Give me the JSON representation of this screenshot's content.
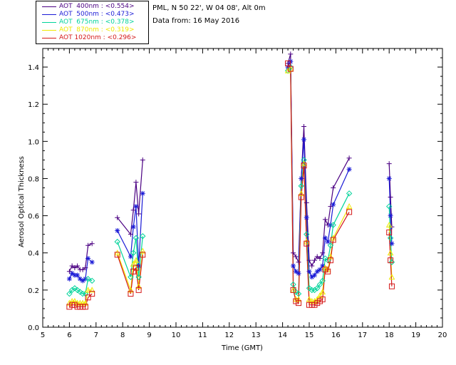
{
  "header": {
    "station": "PML, N 50 22', W 04 08', Alt 0m",
    "date_line": "Data from: 16 May 2016"
  },
  "chart_data": {
    "type": "line",
    "title": "",
    "xlabel": "Time (GMT)",
    "ylabel": "Aerosol Optical Thickness",
    "xlim": [
      5,
      20
    ],
    "ylim": [
      0,
      1.5
    ],
    "xticks": [
      "5",
      "6",
      "7",
      "8",
      "9",
      "10",
      "11",
      "12",
      "13",
      "14",
      "15",
      "16",
      "17",
      "18",
      "19",
      "20"
    ],
    "yticks": [
      "0.0",
      "0.2",
      "0.4",
      "0.6",
      "0.8",
      "1.0",
      "1.2",
      "1.4"
    ],
    "legend_position": "top-left",
    "series": [
      {
        "name": "AOT 400nm",
        "label": "AOT  400nm : <0.554>",
        "color": "#4b0082",
        "marker": "plus",
        "points": [
          [
            6.0,
            0.3
          ],
          [
            6.1,
            0.33
          ],
          [
            6.2,
            0.32
          ],
          [
            6.3,
            0.33
          ],
          [
            6.4,
            0.31
          ],
          [
            6.5,
            0.31
          ],
          [
            6.6,
            0.32
          ],
          [
            6.7,
            0.44
          ],
          [
            6.85,
            0.45
          ],
          [
            7.8,
            0.59
          ],
          [
            8.3,
            0.5
          ],
          [
            8.4,
            0.63
          ],
          [
            8.5,
            0.78
          ],
          [
            8.6,
            0.61
          ],
          [
            8.75,
            0.9
          ],
          [
            14.2,
            1.42
          ],
          [
            14.3,
            1.47
          ],
          [
            14.4,
            0.4
          ],
          [
            14.5,
            0.38
          ],
          [
            14.6,
            0.35
          ],
          [
            14.7,
            0.8
          ],
          [
            14.8,
            1.08
          ],
          [
            14.9,
            0.67
          ],
          [
            15.0,
            0.36
          ],
          [
            15.1,
            0.33
          ],
          [
            15.2,
            0.36
          ],
          [
            15.3,
            0.38
          ],
          [
            15.4,
            0.37
          ],
          [
            15.5,
            0.4
          ],
          [
            15.6,
            0.58
          ],
          [
            15.7,
            0.55
          ],
          [
            15.8,
            0.65
          ],
          [
            15.9,
            0.75
          ],
          [
            16.5,
            0.91
          ],
          [
            18.0,
            0.88
          ],
          [
            18.05,
            0.7
          ],
          [
            18.1,
            0.54
          ]
        ]
      },
      {
        "name": "AOT 500nm",
        "label": "AOT  500nm : <0.473>",
        "color": "#1a1ad6",
        "marker": "asterisk",
        "points": [
          [
            6.0,
            0.26
          ],
          [
            6.1,
            0.29
          ],
          [
            6.2,
            0.28
          ],
          [
            6.3,
            0.28
          ],
          [
            6.4,
            0.26
          ],
          [
            6.5,
            0.25
          ],
          [
            6.6,
            0.26
          ],
          [
            6.7,
            0.37
          ],
          [
            6.85,
            0.35
          ],
          [
            7.8,
            0.52
          ],
          [
            8.3,
            0.38
          ],
          [
            8.4,
            0.54
          ],
          [
            8.5,
            0.65
          ],
          [
            8.6,
            0.33
          ],
          [
            8.75,
            0.72
          ],
          [
            14.2,
            1.4
          ],
          [
            14.3,
            1.43
          ],
          [
            14.4,
            0.33
          ],
          [
            14.5,
            0.3
          ],
          [
            14.6,
            0.29
          ],
          [
            14.7,
            0.8
          ],
          [
            14.8,
            1.01
          ],
          [
            14.9,
            0.59
          ],
          [
            15.0,
            0.3
          ],
          [
            15.1,
            0.27
          ],
          [
            15.2,
            0.28
          ],
          [
            15.3,
            0.3
          ],
          [
            15.4,
            0.31
          ],
          [
            15.5,
            0.33
          ],
          [
            15.6,
            0.48
          ],
          [
            15.7,
            0.46
          ],
          [
            15.8,
            0.55
          ],
          [
            15.9,
            0.66
          ],
          [
            16.5,
            0.85
          ],
          [
            18.0,
            0.8
          ],
          [
            18.05,
            0.6
          ],
          [
            18.1,
            0.45
          ]
        ]
      },
      {
        "name": "AOT 675nm",
        "label": "AOT  675nm : <0.378>",
        "color": "#00d39a",
        "marker": "diamond",
        "points": [
          [
            6.0,
            0.18
          ],
          [
            6.1,
            0.2
          ],
          [
            6.2,
            0.21
          ],
          [
            6.3,
            0.2
          ],
          [
            6.4,
            0.19
          ],
          [
            6.5,
            0.18
          ],
          [
            6.6,
            0.18
          ],
          [
            6.7,
            0.26
          ],
          [
            6.85,
            0.25
          ],
          [
            7.8,
            0.46
          ],
          [
            8.3,
            0.27
          ],
          [
            8.4,
            0.4
          ],
          [
            8.5,
            0.48
          ],
          [
            8.6,
            0.27
          ],
          [
            8.75,
            0.49
          ],
          [
            14.2,
            1.38
          ],
          [
            14.3,
            1.4
          ],
          [
            14.4,
            0.23
          ],
          [
            14.5,
            0.19
          ],
          [
            14.6,
            0.18
          ],
          [
            14.7,
            0.76
          ],
          [
            14.8,
            0.9
          ],
          [
            14.9,
            0.5
          ],
          [
            15.0,
            0.21
          ],
          [
            15.1,
            0.2
          ],
          [
            15.2,
            0.2
          ],
          [
            15.3,
            0.21
          ],
          [
            15.4,
            0.23
          ],
          [
            15.5,
            0.25
          ],
          [
            15.6,
            0.37
          ],
          [
            15.7,
            0.36
          ],
          [
            15.8,
            0.44
          ],
          [
            15.9,
            0.55
          ],
          [
            16.5,
            0.72
          ],
          [
            18.0,
            0.65
          ],
          [
            18.05,
            0.48
          ],
          [
            18.1,
            0.35
          ]
        ]
      },
      {
        "name": "AOT 870nm",
        "label": "AOT  870nm : <0.319>",
        "color": "#f0e800",
        "marker": "triangle",
        "points": [
          [
            6.0,
            0.13
          ],
          [
            6.1,
            0.14
          ],
          [
            6.2,
            0.14
          ],
          [
            6.3,
            0.13
          ],
          [
            6.4,
            0.13
          ],
          [
            6.5,
            0.13
          ],
          [
            6.6,
            0.13
          ],
          [
            6.7,
            0.2
          ],
          [
            6.85,
            0.2
          ],
          [
            7.8,
            0.4
          ],
          [
            8.3,
            0.2
          ],
          [
            8.4,
            0.34
          ],
          [
            8.5,
            0.36
          ],
          [
            8.6,
            0.22
          ],
          [
            8.75,
            0.41
          ],
          [
            14.2,
            1.38
          ],
          [
            14.3,
            1.39
          ],
          [
            14.4,
            0.2
          ],
          [
            14.5,
            0.15
          ],
          [
            14.6,
            0.15
          ],
          [
            14.7,
            0.72
          ],
          [
            14.8,
            0.88
          ],
          [
            14.9,
            0.46
          ],
          [
            15.0,
            0.15
          ],
          [
            15.1,
            0.14
          ],
          [
            15.2,
            0.14
          ],
          [
            15.3,
            0.15
          ],
          [
            15.4,
            0.17
          ],
          [
            15.5,
            0.19
          ],
          [
            15.6,
            0.32
          ],
          [
            15.7,
            0.31
          ],
          [
            15.8,
            0.38
          ],
          [
            15.9,
            0.48
          ],
          [
            16.5,
            0.65
          ],
          [
            18.0,
            0.55
          ],
          [
            18.05,
            0.4
          ],
          [
            18.1,
            0.27
          ]
        ]
      },
      {
        "name": "AOT 1020nm",
        "label": "AOT 1020nm : <0.296>",
        "color": "#d41818",
        "marker": "square",
        "points": [
          [
            6.0,
            0.11
          ],
          [
            6.1,
            0.12
          ],
          [
            6.2,
            0.12
          ],
          [
            6.3,
            0.11
          ],
          [
            6.4,
            0.11
          ],
          [
            6.5,
            0.11
          ],
          [
            6.6,
            0.11
          ],
          [
            6.7,
            0.16
          ],
          [
            6.85,
            0.18
          ],
          [
            7.8,
            0.39
          ],
          [
            8.3,
            0.18
          ],
          [
            8.4,
            0.3
          ],
          [
            8.5,
            0.32
          ],
          [
            8.6,
            0.2
          ],
          [
            8.75,
            0.39
          ],
          [
            14.2,
            1.42
          ],
          [
            14.3,
            1.39
          ],
          [
            14.4,
            0.2
          ],
          [
            14.5,
            0.14
          ],
          [
            14.6,
            0.13
          ],
          [
            14.7,
            0.7
          ],
          [
            14.8,
            0.87
          ],
          [
            14.9,
            0.45
          ],
          [
            15.0,
            0.12
          ],
          [
            15.1,
            0.12
          ],
          [
            15.2,
            0.12
          ],
          [
            15.3,
            0.13
          ],
          [
            15.4,
            0.14
          ],
          [
            15.5,
            0.15
          ],
          [
            15.6,
            0.31
          ],
          [
            15.7,
            0.3
          ],
          [
            15.8,
            0.36
          ],
          [
            15.9,
            0.47
          ],
          [
            16.5,
            0.62
          ],
          [
            18.0,
            0.51
          ],
          [
            18.05,
            0.36
          ],
          [
            18.1,
            0.22
          ]
        ]
      }
    ]
  }
}
